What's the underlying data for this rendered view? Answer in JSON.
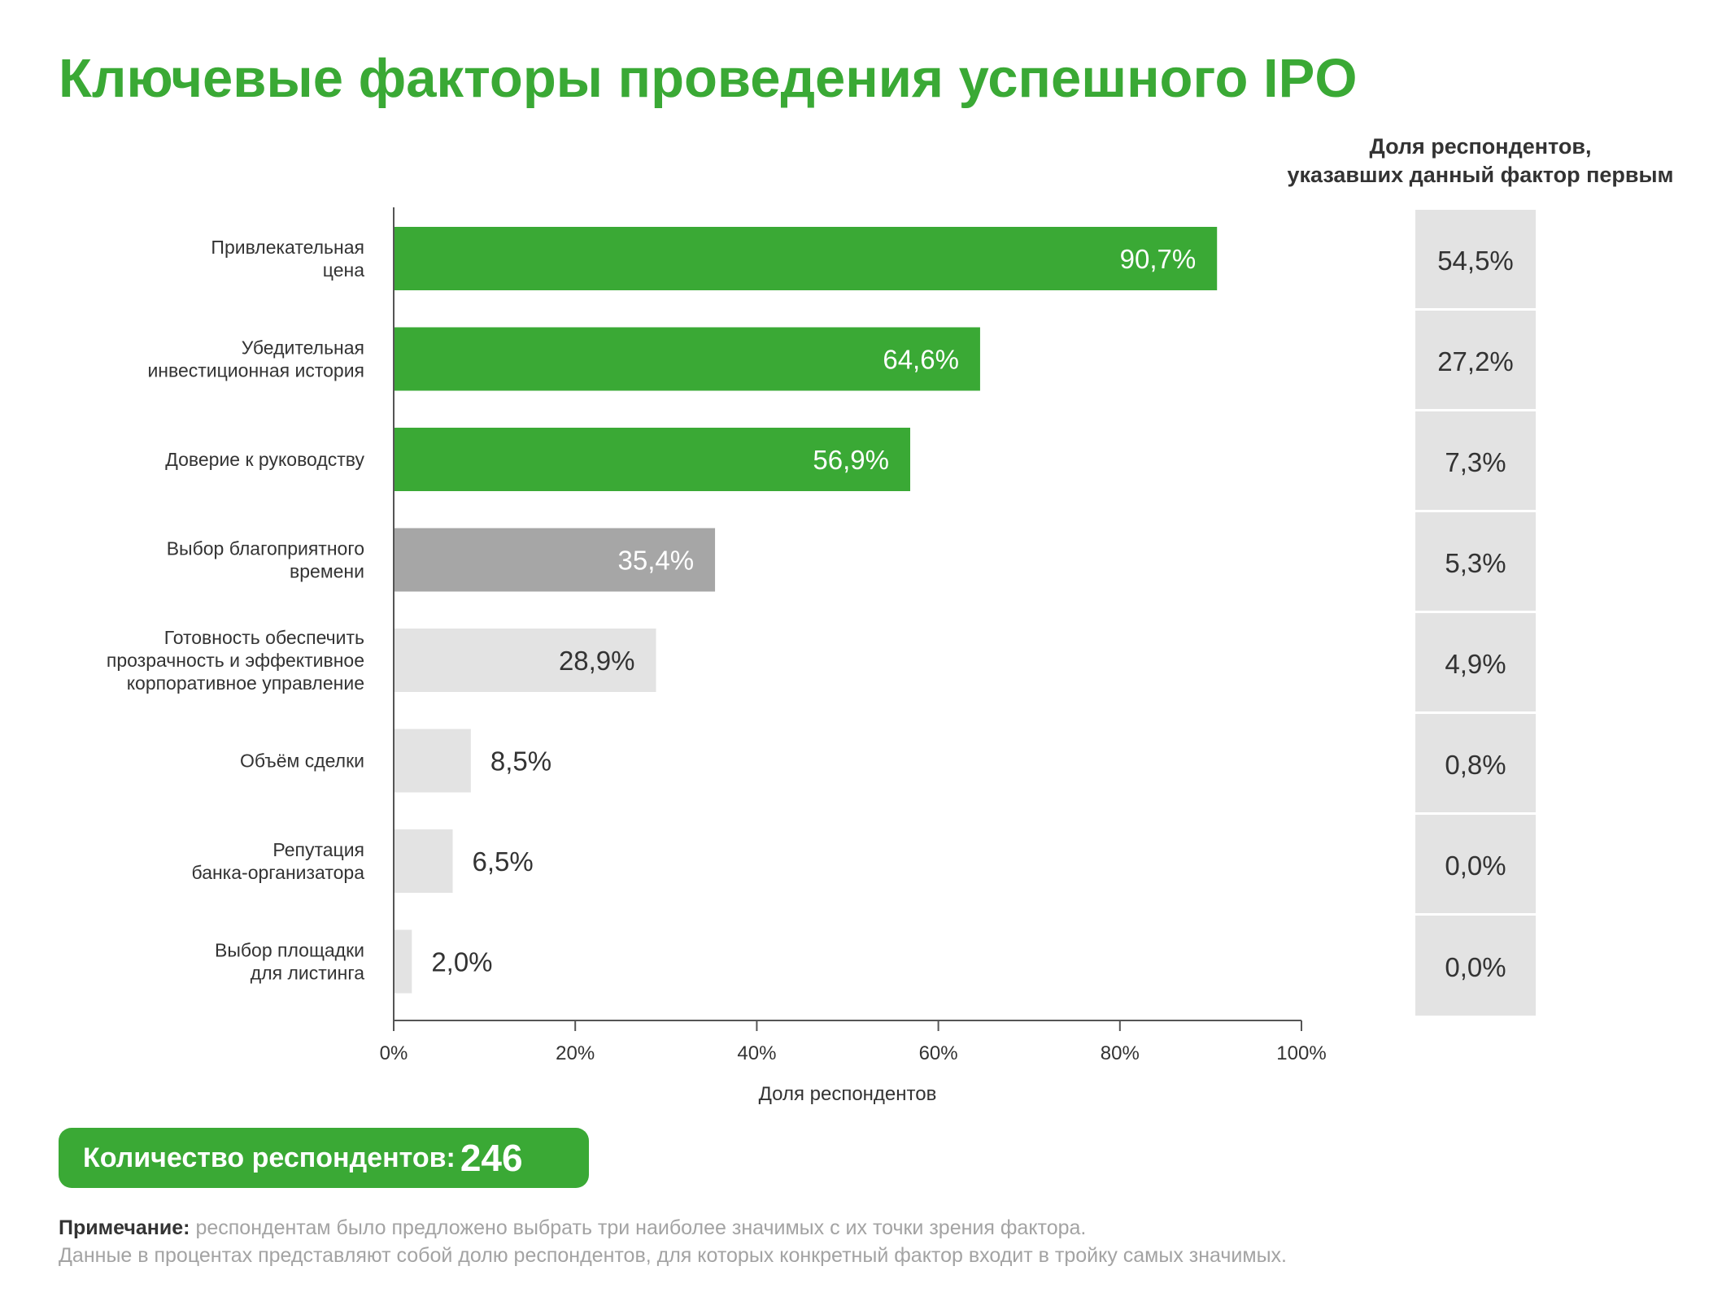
{
  "title": "Ключевые факторы проведения успешного IPO",
  "colors": {
    "accent": "#3aa935",
    "top3": "#3aa935",
    "mid": "#a6a6a6",
    "low": "#e3e3e3",
    "label_dark": "#333333",
    "label_light": "#ffffff",
    "note": "#a3a3a3"
  },
  "chart_data": {
    "type": "bar",
    "orientation": "horizontal",
    "categories": [
      [
        "Привлекательная",
        "цена"
      ],
      [
        "Убедительная",
        "инвестиционная история"
      ],
      [
        "Доверие к руководству"
      ],
      [
        "Выбор благоприятного",
        "времени"
      ],
      [
        "Готовность обеспечить",
        "прозрачность и эффективное",
        "корпоративное управление"
      ],
      [
        "Объём сделки"
      ],
      [
        "Репутация",
        "банка-организатора"
      ],
      [
        "Выбор площадки",
        "для листинга"
      ]
    ],
    "values": [
      90.7,
      64.6,
      56.9,
      35.4,
      28.9,
      8.5,
      6.5,
      2.0
    ],
    "value_labels": [
      "90,7%",
      "64,6%",
      "56,9%",
      "35,4%",
      "28,9%",
      "8,5%",
      "6,5%",
      "2,0%"
    ],
    "bar_colors": [
      "#3aa935",
      "#3aa935",
      "#3aa935",
      "#a6a6a6",
      "#e3e3e3",
      "#e3e3e3",
      "#e3e3e3",
      "#e3e3e3"
    ],
    "label_inside": [
      true,
      true,
      true,
      true,
      true,
      false,
      false,
      false
    ],
    "label_colors": [
      "#ffffff",
      "#ffffff",
      "#ffffff",
      "#ffffff",
      "#333333",
      "#333333",
      "#333333",
      "#333333"
    ],
    "xlim": [
      0,
      100
    ],
    "xticks": [
      "0%",
      "20%",
      "40%",
      "60%",
      "80%",
      "100%"
    ],
    "xlabel": "Доля респондентов",
    "grid": false,
    "first_choice": {
      "title_lines": [
        "Доля респондентов,",
        "указавших данный фактор первым"
      ],
      "values": [
        54.5,
        27.2,
        7.3,
        5.3,
        4.9,
        0.8,
        0.0,
        0.0
      ],
      "labels": [
        "54,5%",
        "27,2%",
        "7,3%",
        "5,3%",
        "4,9%",
        "0,8%",
        "0,0%",
        "0,0%"
      ]
    }
  },
  "respondents": {
    "label": "Количество респондентов:",
    "count": "246"
  },
  "note": {
    "label": "Примечание:",
    "line1": " респондентам было предложено выбрать три наиболее значимых с их точки зрения фактора.",
    "line2": "Данные в процентах представляют собой долю респондентов, для которых конкретный фактор входит в тройку самых значимых."
  }
}
